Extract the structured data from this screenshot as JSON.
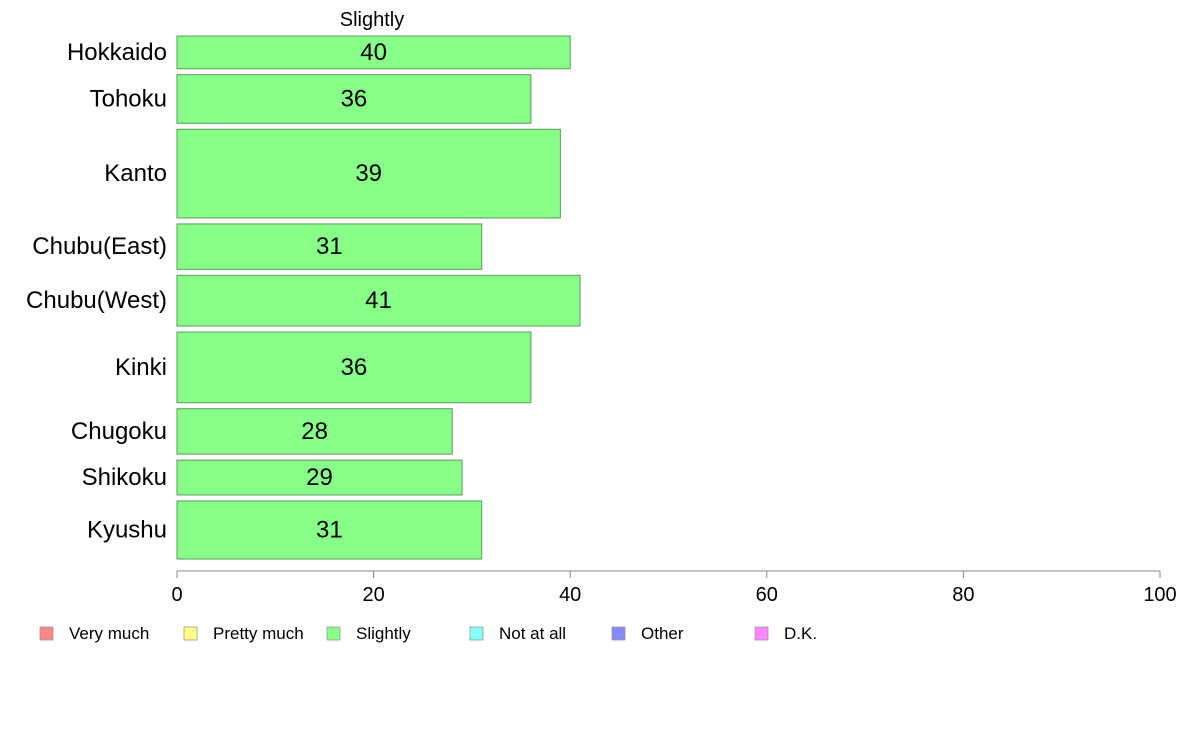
{
  "chart_data": {
    "type": "bar",
    "orientation": "horizontal",
    "title": "Slightly",
    "categories": [
      "Hokkaido",
      "Tohoku",
      "Kanto",
      "Chubu(East)",
      "Chubu(West)",
      "Kinki",
      "Chugoku",
      "Shikoku",
      "Kyushu"
    ],
    "series": [
      {
        "name": "Slightly",
        "values": [
          40,
          36,
          39,
          31,
          41,
          36,
          28,
          29,
          31
        ],
        "color": "#88ff88"
      }
    ],
    "variable_bar_widths": [
      31,
      46,
      84,
      43,
      48,
      67,
      43,
      33,
      55
    ],
    "xlim": [
      0,
      100
    ],
    "xticks": [
      "0",
      "20",
      "40",
      "60",
      "80",
      "100"
    ],
    "xlabel": "",
    "ylabel": "",
    "grid": false,
    "legend_position": "bottom",
    "legend": [
      {
        "label": "Very much",
        "color": "#ff8888"
      },
      {
        "label": "Pretty much",
        "color": "#ffff88"
      },
      {
        "label": "Slightly",
        "color": "#88ff88"
      },
      {
        "label": "Not at all",
        "color": "#88ffff"
      },
      {
        "label": "Other",
        "color": "#8888ff"
      },
      {
        "label": "D.K.",
        "color": "#ff88ff"
      }
    ],
    "bar_edge_color": "#5a9a5a",
    "axis_color": "#888888"
  }
}
